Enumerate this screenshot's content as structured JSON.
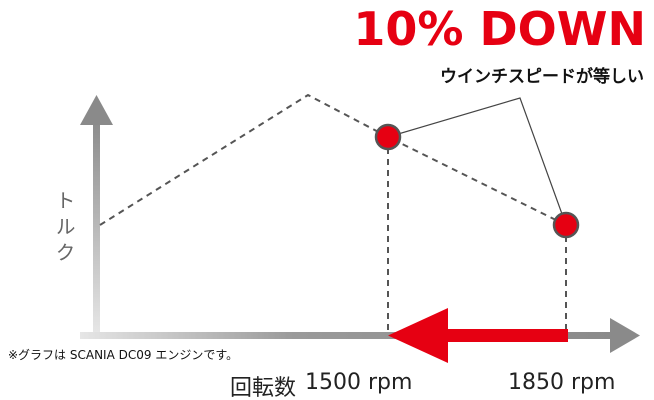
{
  "header": {
    "title": "10% DOWN",
    "subtitle": "ウインチスピードが等しい"
  },
  "axes": {
    "y_label": "トルク",
    "x_label": "回転数",
    "x_marks": [
      "1500 rpm",
      "1850 rpm"
    ]
  },
  "note": "※グラフは SCANIA DC09 エンジンです。"
}
